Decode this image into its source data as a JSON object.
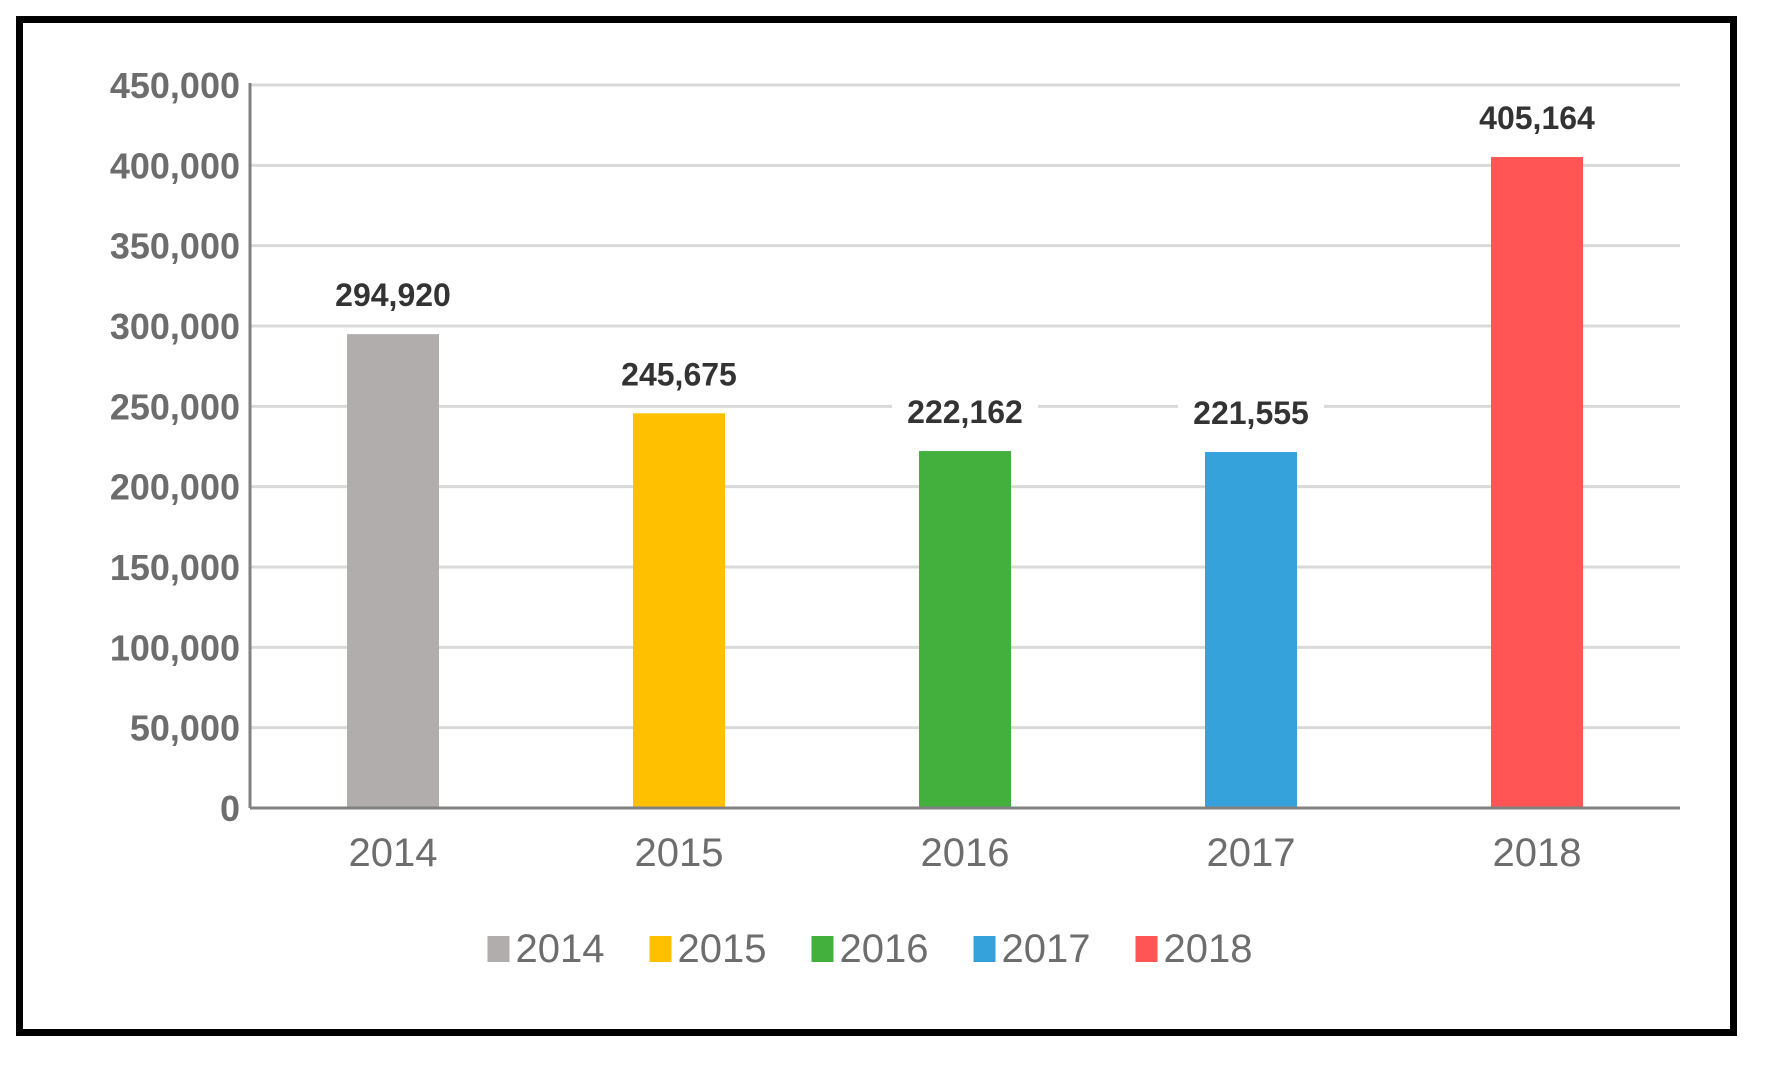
{
  "chart_data": {
    "type": "bar",
    "categories": [
      "2014",
      "2015",
      "2016",
      "2017",
      "2018"
    ],
    "values": [
      294920,
      245675,
      222162,
      221555,
      405164
    ],
    "data_labels": [
      "294,920",
      "245,675",
      "222,162",
      "221,555",
      "405,164"
    ],
    "colors": [
      "#b0adac",
      "#ffc000",
      "#43b03d",
      "#35a2db",
      "#ff5555"
    ],
    "ylim": [
      0,
      450000
    ],
    "yticks": [
      {
        "value": 0,
        "label": "0"
      },
      {
        "value": 50000,
        "label": "50,000"
      },
      {
        "value": 100000,
        "label": "100,000"
      },
      {
        "value": 150000,
        "label": "150,000"
      },
      {
        "value": 200000,
        "label": "200,000"
      },
      {
        "value": 250000,
        "label": "250,000"
      },
      {
        "value": 300000,
        "label": "300,000"
      },
      {
        "value": 350000,
        "label": "350,000"
      },
      {
        "value": 400000,
        "label": "400,000"
      },
      {
        "value": 450000,
        "label": "450,000"
      }
    ],
    "title": "",
    "xlabel": "",
    "ylabel": "",
    "grid": true,
    "legend": {
      "placement": "bottom",
      "entries": [
        "2014",
        "2015",
        "2016",
        "2017",
        "2018"
      ]
    },
    "colors_meta": {
      "grid": "#d9d9d9",
      "axis": "#808080",
      "tick_text": "#6d6d6d",
      "label_text": "#333333"
    }
  }
}
